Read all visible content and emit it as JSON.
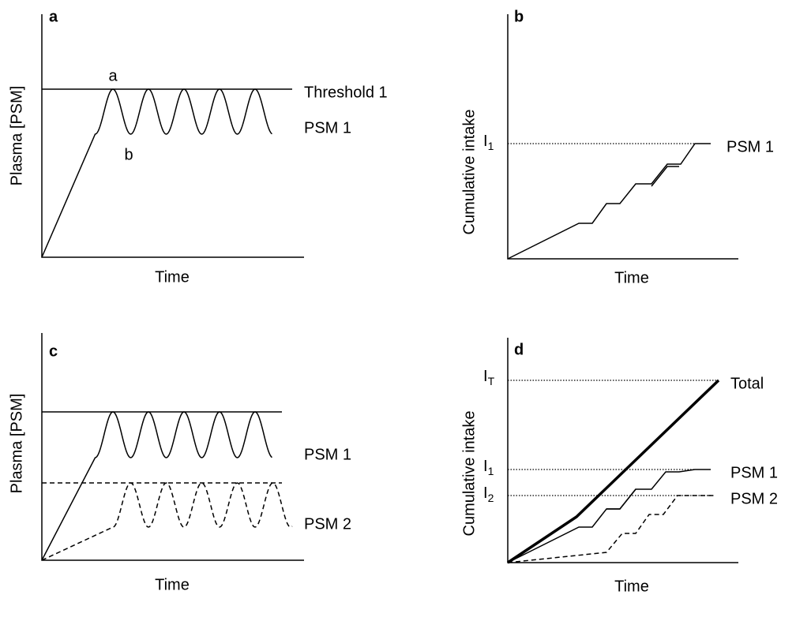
{
  "panels": [
    {
      "label": "a",
      "y_axis_label": "Plasma [PSM]",
      "x_axis_label": "Time",
      "annotations": [
        "Threshold 1",
        "PSM 1"
      ],
      "peak_label": "a",
      "trough_label": "b"
    },
    {
      "label": "b",
      "y_axis_label": "Cumulative intake",
      "x_axis_label": "Time",
      "levels": [
        {
          "main": "I",
          "sub": "1"
        }
      ],
      "annotations": [
        "PSM 1"
      ]
    },
    {
      "label": "c",
      "y_axis_label": "Plasma [PSM]",
      "x_axis_label": "Time",
      "annotations": [
        "PSM 1",
        "PSM 2"
      ]
    },
    {
      "label": "d",
      "y_axis_label": "Cumulative intake",
      "x_axis_label": "Time",
      "levels": [
        {
          "main": "I",
          "sub": "T"
        },
        {
          "main": "I",
          "sub": "1"
        },
        {
          "main": "I",
          "sub": "2"
        }
      ],
      "annotations": [
        "Total",
        "PSM 1",
        "PSM 2"
      ]
    }
  ]
}
